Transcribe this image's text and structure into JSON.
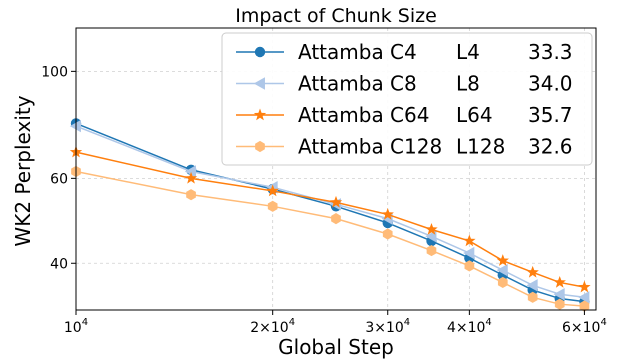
{
  "chart_data": {
    "type": "line",
    "title": "Impact of Chunk Size",
    "xlabel": "Global Step",
    "ylabel": "WK2 Perplexity",
    "x_scale": "log",
    "y_scale": "log",
    "xlim": [
      10000,
      62500
    ],
    "ylim": [
      32,
      123
    ],
    "x_ticks": [
      {
        "value": 10000,
        "label": "10^4"
      },
      {
        "value": 20000,
        "label": "2×10^4"
      },
      {
        "value": 30000,
        "label": "3×10^4"
      },
      {
        "value": 40000,
        "label": "4×10^4"
      },
      {
        "value": 60000,
        "label": "6×10^4"
      }
    ],
    "y_ticks": [
      {
        "value": 40,
        "label": "40"
      },
      {
        "value": 60,
        "label": "60"
      },
      {
        "value": 100,
        "label": "100"
      }
    ],
    "grid": true,
    "legend_position": "top-right",
    "x": [
      10000,
      15000,
      20000,
      25000,
      30000,
      35000,
      40000,
      45000,
      50000,
      55000,
      60000
    ],
    "series": [
      {
        "name": "Attamba C4",
        "L": "L4",
        "score": "33.3",
        "color": "#1f77b4",
        "marker": "circle",
        "values": [
          78.0,
          62.5,
          57.0,
          52.5,
          48.5,
          44.5,
          41.0,
          37.8,
          35.2,
          33.8,
          33.3
        ]
      },
      {
        "name": "Attamba C8",
        "L": "L8",
        "score": "34.0",
        "color": "#aec7e8",
        "marker": "triangle-left",
        "values": [
          77.0,
          62.0,
          57.5,
          53.0,
          49.5,
          45.5,
          42.0,
          38.7,
          36.0,
          34.5,
          34.0
        ]
      },
      {
        "name": "Attamba C64",
        "L": "L64",
        "score": "35.7",
        "color": "#ff7f0e",
        "marker": "star",
        "values": [
          68.0,
          60.0,
          56.5,
          53.5,
          50.5,
          47.0,
          44.5,
          40.5,
          38.3,
          36.5,
          35.7
        ]
      },
      {
        "name": "Attamba C128",
        "L": "L128",
        "score": "32.6",
        "color": "#ffbb78",
        "marker": "hexagon",
        "values": [
          62.0,
          55.5,
          52.5,
          49.5,
          46.0,
          42.5,
          39.5,
          36.5,
          34.0,
          32.9,
          32.6
        ]
      }
    ]
  }
}
